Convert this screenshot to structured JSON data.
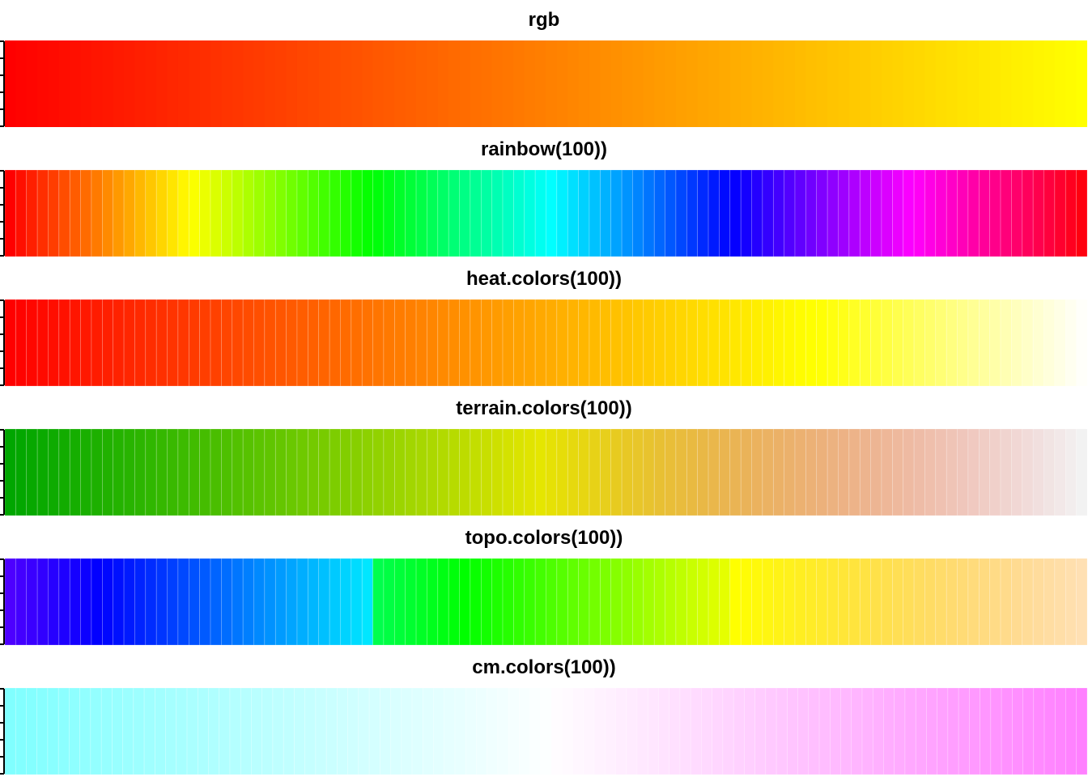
{
  "chart_data": [
    {
      "type": "heatmap",
      "title": "rgb",
      "n": 100,
      "palette": "rgb",
      "grid": false,
      "ticks": 6
    },
    {
      "type": "heatmap",
      "title": "rainbow(100))",
      "n": 100,
      "palette": "rainbow",
      "grid": true,
      "ticks": 6
    },
    {
      "type": "heatmap",
      "title": "heat.colors(100))",
      "n": 100,
      "palette": "heat",
      "grid": true,
      "ticks": 6
    },
    {
      "type": "heatmap",
      "title": "terrain.colors(100))",
      "n": 100,
      "palette": "terrain",
      "grid": true,
      "ticks": 6
    },
    {
      "type": "heatmap",
      "title": "topo.colors(100))",
      "n": 100,
      "palette": "topo",
      "grid": true,
      "ticks": 6
    },
    {
      "type": "heatmap",
      "title": "cm.colors(100))",
      "n": 100,
      "palette": "cm",
      "grid": true,
      "ticks": 6
    }
  ]
}
